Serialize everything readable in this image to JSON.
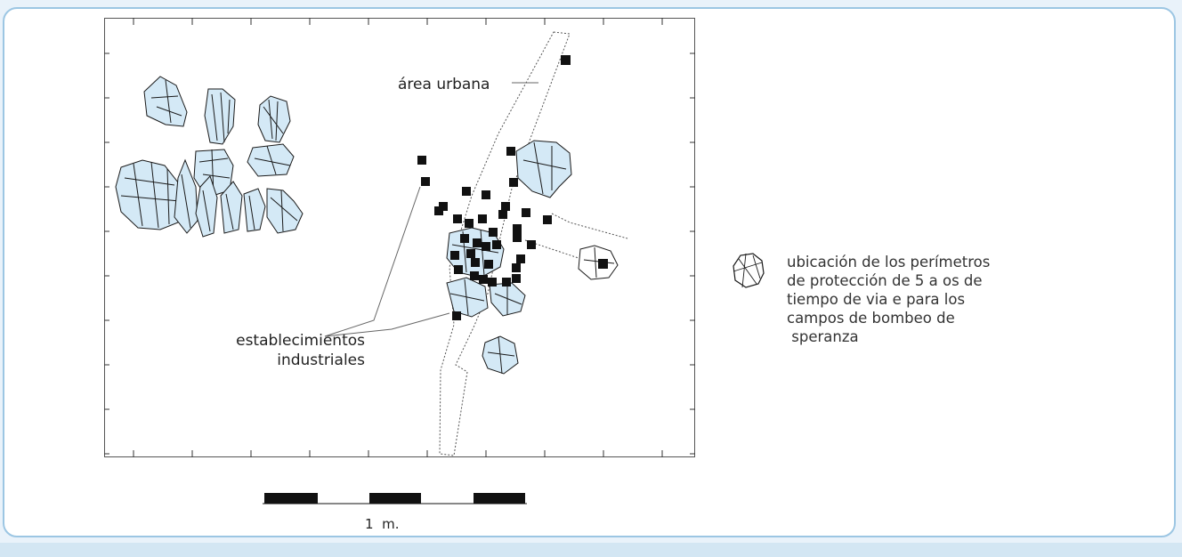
{
  "labels": {
    "urban_area": "área urbana",
    "industrial_line1": "establecimientos",
    "industrial_line2": "industriales"
  },
  "legend": {
    "icon": "protection-perimeter-icon",
    "lines": [
      "ubicación de los perímetros",
      "de protección de 5 a os de",
      "tiempo de via e para los",
      "campos de bombeo de",
      " speranza"
    ]
  },
  "scale_bar": {
    "label": "1  m."
  },
  "colors": {
    "perimeter_fill": "#d4e9f6",
    "perimeter_stroke": "#1a1a1a",
    "industrial_marker": "#111111",
    "panel_border": "#9cc6e3",
    "background": "#e9f2fa"
  }
}
